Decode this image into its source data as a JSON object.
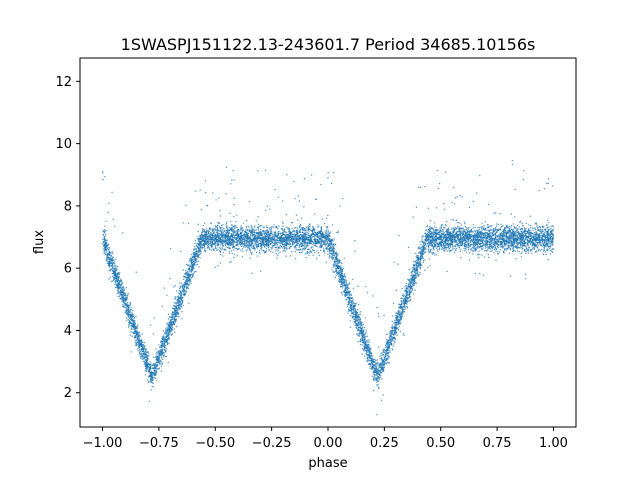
{
  "chart_data": {
    "type": "scatter",
    "title": "1SWASPJ151122.13-243601.7 Period 34685.10156s",
    "xlabel": "phase",
    "ylabel": "flux",
    "xlim": [
      -1.1,
      1.1
    ],
    "ylim": [
      0.9,
      12.75
    ],
    "x_ticks": [
      -1.0,
      -0.75,
      -0.5,
      -0.25,
      0.0,
      0.25,
      0.5,
      0.75,
      1.0
    ],
    "x_tick_labels": [
      "−1.00",
      "−0.75",
      "−0.50",
      "−0.25",
      "0.00",
      "0.25",
      "0.50",
      "0.75",
      "1.00"
    ],
    "y_ticks": [
      2,
      4,
      6,
      8,
      10,
      12
    ],
    "y_tick_labels": [
      "2",
      "4",
      "6",
      "8",
      "10",
      "12"
    ],
    "grid": false,
    "marker_color": "#1f77b4",
    "series": [
      {
        "baseline_flux": 6.95,
        "eclipses": [
          {
            "phase_center": -0.78,
            "phase_halfwidth": 0.22,
            "min_flux": 2.5
          },
          {
            "phase_center": 0.22,
            "phase_halfwidth": 0.22,
            "min_flux": 2.5
          }
        ],
        "phase_range": [
          -1.0,
          1.0
        ]
      }
    ]
  }
}
